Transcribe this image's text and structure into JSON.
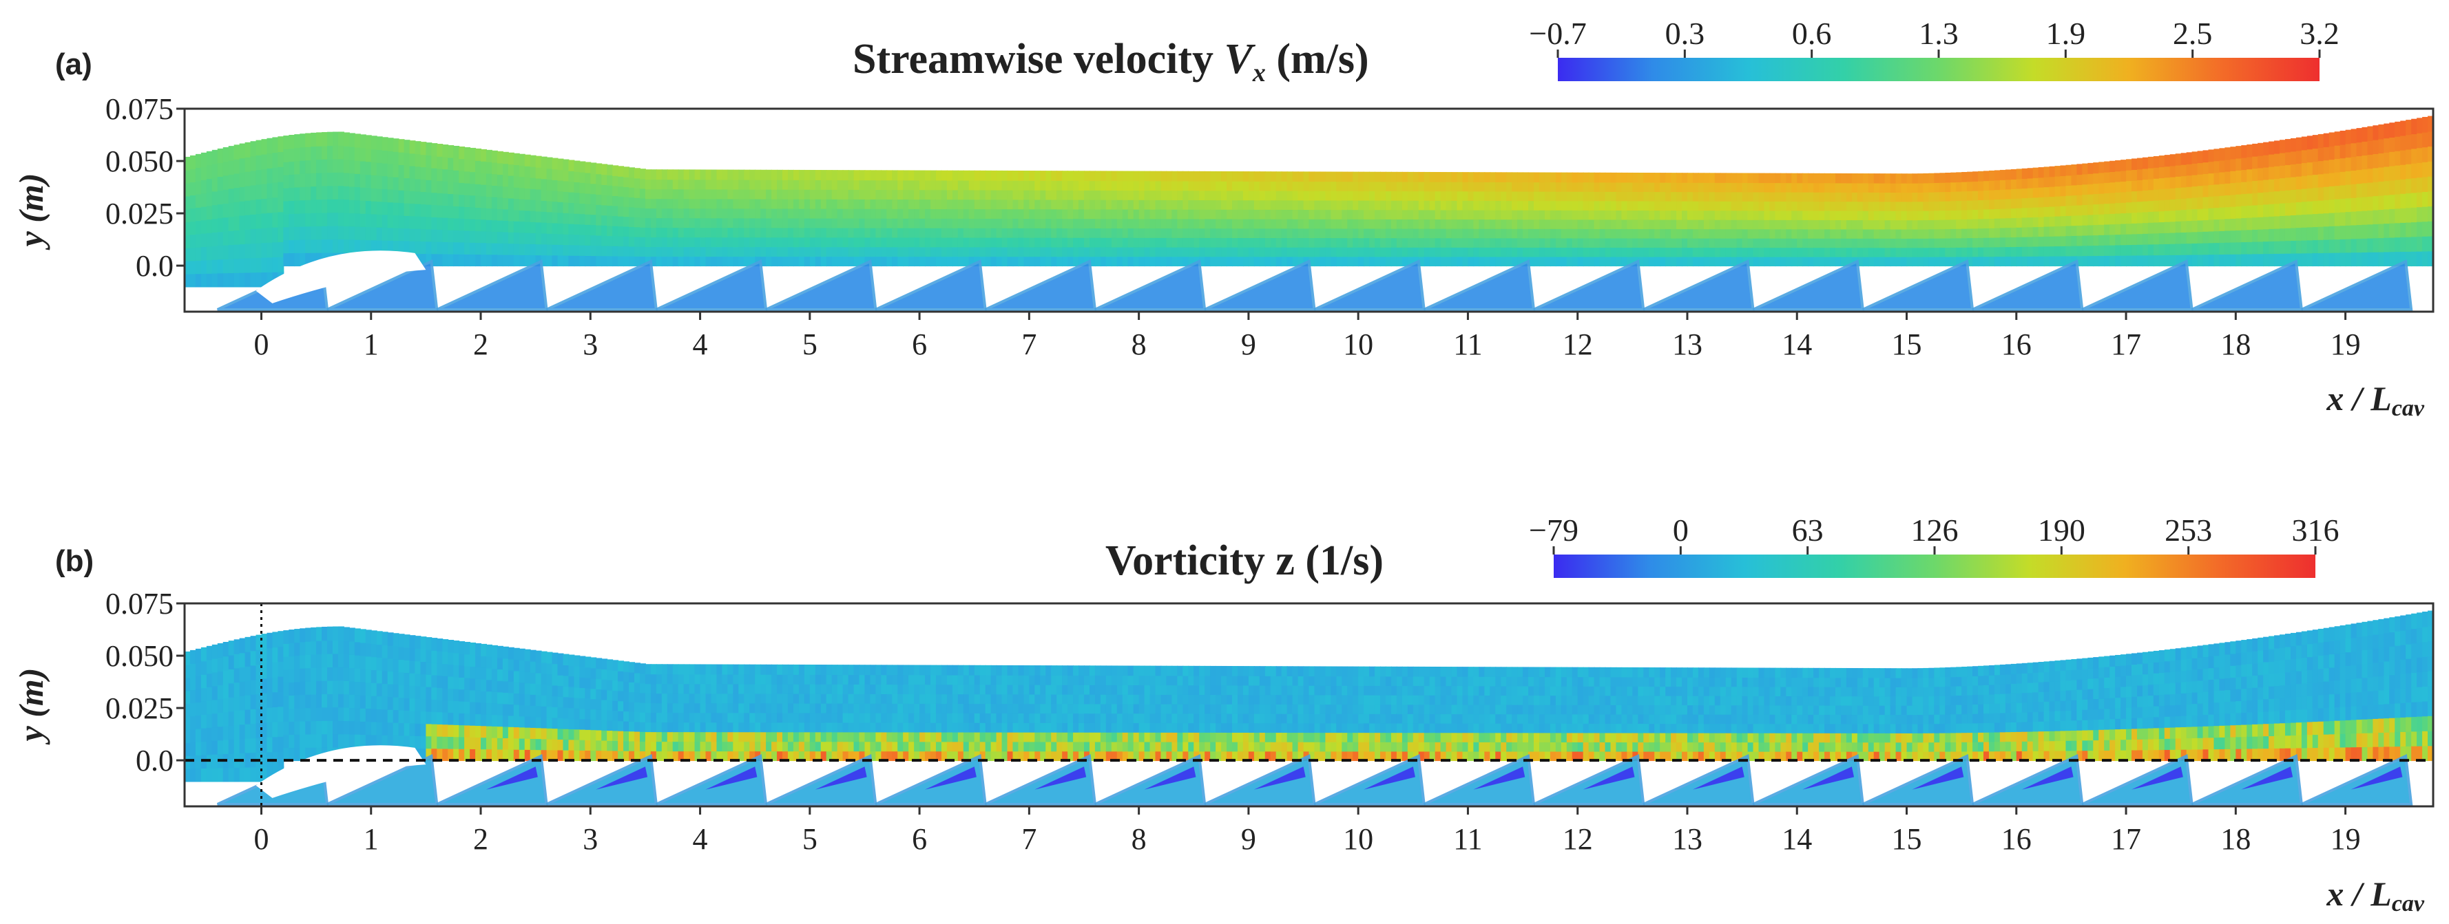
{
  "chart_data": [
    {
      "panel_label": "(a)",
      "type": "scatter",
      "title_text": "Streamwise velocity ",
      "title_symbol": "V",
      "title_subscript": "x",
      "title_units": " (m/s)",
      "xlabel": "x / L",
      "xlabel_subscript": "cav",
      "ylabel": "y (m)",
      "xlim": [
        -0.7,
        19.8
      ],
      "ylim": [
        -0.022,
        0.075
      ],
      "x_ticks": [
        0,
        1,
        2,
        3,
        4,
        5,
        6,
        7,
        8,
        9,
        10,
        11,
        12,
        13,
        14,
        15,
        16,
        17,
        18,
        19
      ],
      "y_ticks": [
        0.075,
        0.05,
        0.025,
        0.0
      ],
      "y_tick_labels": [
        "0.075",
        "0.050",
        "0.025",
        "0.0"
      ],
      "field": "velocity",
      "colorbar": {
        "tick_labels": [
          "−0.7",
          "0.3",
          "0.6",
          "1.3",
          "1.9",
          "2.5",
          "3.2"
        ],
        "colors": [
          "#3b2bf0",
          "#2f8be8",
          "#27bfd8",
          "#33d0a8",
          "#6dd86a",
          "#c4dc28",
          "#f0b020",
          "#f36a28",
          "#ee2f2f"
        ]
      },
      "reference_lines": {
        "vertical_x": null,
        "horizontal_y": null
      },
      "cavity_count": 20
    },
    {
      "panel_label": "(b)",
      "type": "scatter",
      "title_text": "Vorticity z (1/s)",
      "title_symbol": "",
      "title_subscript": "",
      "title_units": "",
      "xlabel": "x / L",
      "xlabel_subscript": "cav",
      "ylabel": "y (m)",
      "xlim": [
        -0.7,
        19.8
      ],
      "ylim": [
        -0.022,
        0.075
      ],
      "x_ticks": [
        0,
        1,
        2,
        3,
        4,
        5,
        6,
        7,
        8,
        9,
        10,
        11,
        12,
        13,
        14,
        15,
        16,
        17,
        18,
        19
      ],
      "y_ticks": [
        0.075,
        0.05,
        0.025,
        0.0
      ],
      "y_tick_labels": [
        "0.075",
        "0.050",
        "0.025",
        "0.0"
      ],
      "field": "vorticity",
      "colorbar": {
        "tick_labels": [
          "−79",
          "0",
          "63",
          "126",
          "190",
          "253",
          "316"
        ],
        "colors": [
          "#3b2bf0",
          "#2f8be8",
          "#27bfd8",
          "#33d0a8",
          "#6dd86a",
          "#c4dc28",
          "#f0b020",
          "#f36a28",
          "#ee2f2f"
        ]
      },
      "reference_lines": {
        "vertical_x": 0,
        "horizontal_y": 0.0
      },
      "cavity_count": 20
    }
  ]
}
